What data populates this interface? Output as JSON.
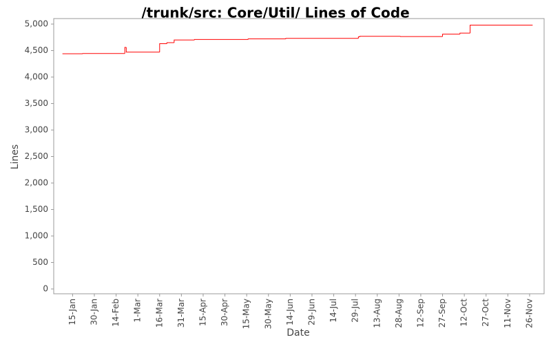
{
  "chart_data": {
    "type": "step",
    "title": "/trunk/src: Core/Util/ Lines of Code",
    "xlabel": "Date",
    "ylabel": "Lines",
    "x": [
      "8-Jan",
      "22-Jan",
      "20-Feb",
      "21-Feb",
      "16-Mar",
      "21-Mar",
      "26-Mar",
      "9-Apr",
      "16-May",
      "11-Jun",
      "31-Jul",
      "1-Aug",
      "29-Aug",
      "27-Sep",
      "9-Oct",
      "16-Oct",
      "28-Nov"
    ],
    "series": [
      {
        "name": "Lines",
        "color": "#ff0000",
        "values": [
          4440,
          4445,
          4560,
          4470,
          4630,
          4650,
          4700,
          4710,
          4720,
          4730,
          4760,
          4770,
          4765,
          4810,
          4830,
          4980,
          4975
        ]
      }
    ],
    "xlim": [
      "2-Jan",
      "6-Dec"
    ],
    "xticks": [
      "15-Jan",
      "30-Jan",
      "14-Feb",
      "1-Mar",
      "16-Mar",
      "31-Mar",
      "15-Apr",
      "30-Apr",
      "15-May",
      "30-May",
      "14-Jun",
      "29-Jun",
      "14-Jul",
      "29-Jul",
      "13-Aug",
      "28-Aug",
      "12-Sep",
      "27-Sep",
      "12-Oct",
      "27-Oct",
      "11-Nov",
      "26-Nov"
    ],
    "ylim": [
      0,
      5000
    ],
    "yticks": [
      0,
      500,
      {
        "value": 1000,
        "label": "1,000"
      },
      {
        "value": 1500,
        "label": "1,500"
      },
      {
        "value": 2000,
        "label": "2,000"
      },
      {
        "value": 2500,
        "label": "2,500"
      },
      {
        "value": 3000,
        "label": "3,000"
      },
      {
        "value": 3500,
        "label": "3,500"
      },
      {
        "value": 4000,
        "label": "4,000"
      },
      {
        "value": 4500,
        "label": "4,500"
      },
      {
        "value": 5000,
        "label": "5,000"
      }
    ],
    "grid": false
  }
}
